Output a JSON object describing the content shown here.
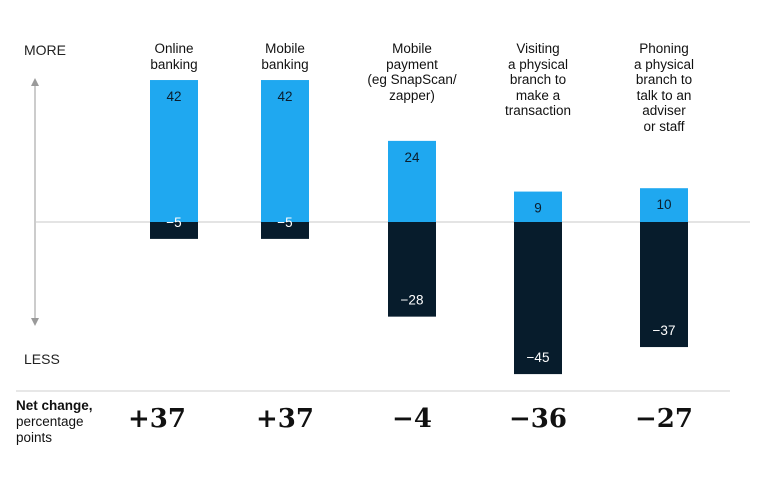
{
  "axis": {
    "top_label": "MORE",
    "bottom_label": "LESS"
  },
  "net_change": {
    "title": "Net change,",
    "subtitle_line1": "percentage",
    "subtitle_line2": "points"
  },
  "colors": {
    "more": "#1fa8f0",
    "less": "#071c2c",
    "baseline": "#c8c8c8",
    "separator": "#cfcfcf",
    "arrow": "#9a9a9a"
  },
  "chart_data": {
    "type": "bar",
    "categories": [
      "Online\nbanking",
      "Mobile\nbanking",
      "Mobile\npayment\n(eg SnapScan/\nzapper)",
      "Visiting\na physical\nbranch to\nmake a\ntransaction",
      "Phoning\na physical\nbranch to\ntalk to an\nadviser\nor staff"
    ],
    "series": [
      {
        "name": "MORE",
        "values": [
          42,
          42,
          24,
          9,
          10
        ]
      },
      {
        "name": "LESS",
        "values": [
          -5,
          -5,
          -28,
          -45,
          -37
        ]
      }
    ],
    "value_labels": {
      "more": [
        "42",
        "42",
        "24",
        "9",
        "10"
      ],
      "less": [
        "−5",
        "−5",
        "−28",
        "−45",
        "−37"
      ]
    },
    "net_change": [
      "+37",
      "+37",
      "−4",
      "−36",
      "−27"
    ],
    "ylim": [
      -45,
      42
    ],
    "grid": false
  }
}
